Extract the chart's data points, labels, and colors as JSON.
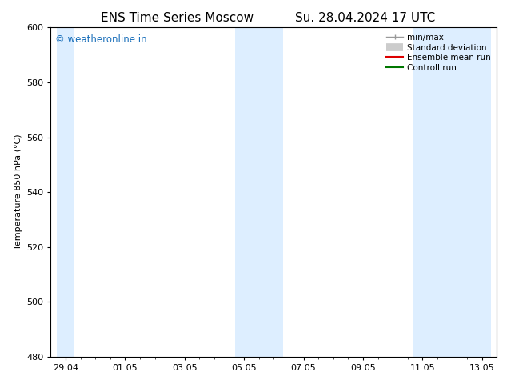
{
  "title_left": "ENS Time Series Moscow",
  "title_right": "Su. 28.04.2024 17 UTC",
  "ylabel": "Temperature 850 hPa (°C)",
  "ylim": [
    480,
    600
  ],
  "yticks": [
    480,
    500,
    520,
    540,
    560,
    580,
    600
  ],
  "xtick_labels": [
    "29.04",
    "01.05",
    "03.05",
    "05.05",
    "07.05",
    "09.05",
    "11.05",
    "13.05"
  ],
  "xtick_positions": [
    0,
    2,
    4,
    6,
    8,
    10,
    12,
    14
  ],
  "shaded_bands": [
    {
      "x_start": -0.3,
      "x_end": 0.3,
      "color": "#ddeeff"
    },
    {
      "x_start": 5.7,
      "x_end": 7.3,
      "color": "#ddeeff"
    },
    {
      "x_start": 11.7,
      "x_end": 14.3,
      "color": "#ddeeff"
    }
  ],
  "xmin": -0.5,
  "xmax": 14.5,
  "legend_items": [
    {
      "label": "min/max",
      "color": "#999999",
      "lw": 1.0
    },
    {
      "label": "Standard deviation",
      "color": "#cccccc",
      "lw": 7
    },
    {
      "label": "Ensemble mean run",
      "color": "#dd0000",
      "lw": 1.5
    },
    {
      "label": "Controll run",
      "color": "#007700",
      "lw": 1.5
    }
  ],
  "watermark_text": "© weatheronline.in",
  "watermark_color": "#1a6fba",
  "background_color": "#ffffff",
  "title_fontsize": 11,
  "axis_fontsize": 8,
  "tick_fontsize": 8,
  "legend_fontsize": 7.5
}
